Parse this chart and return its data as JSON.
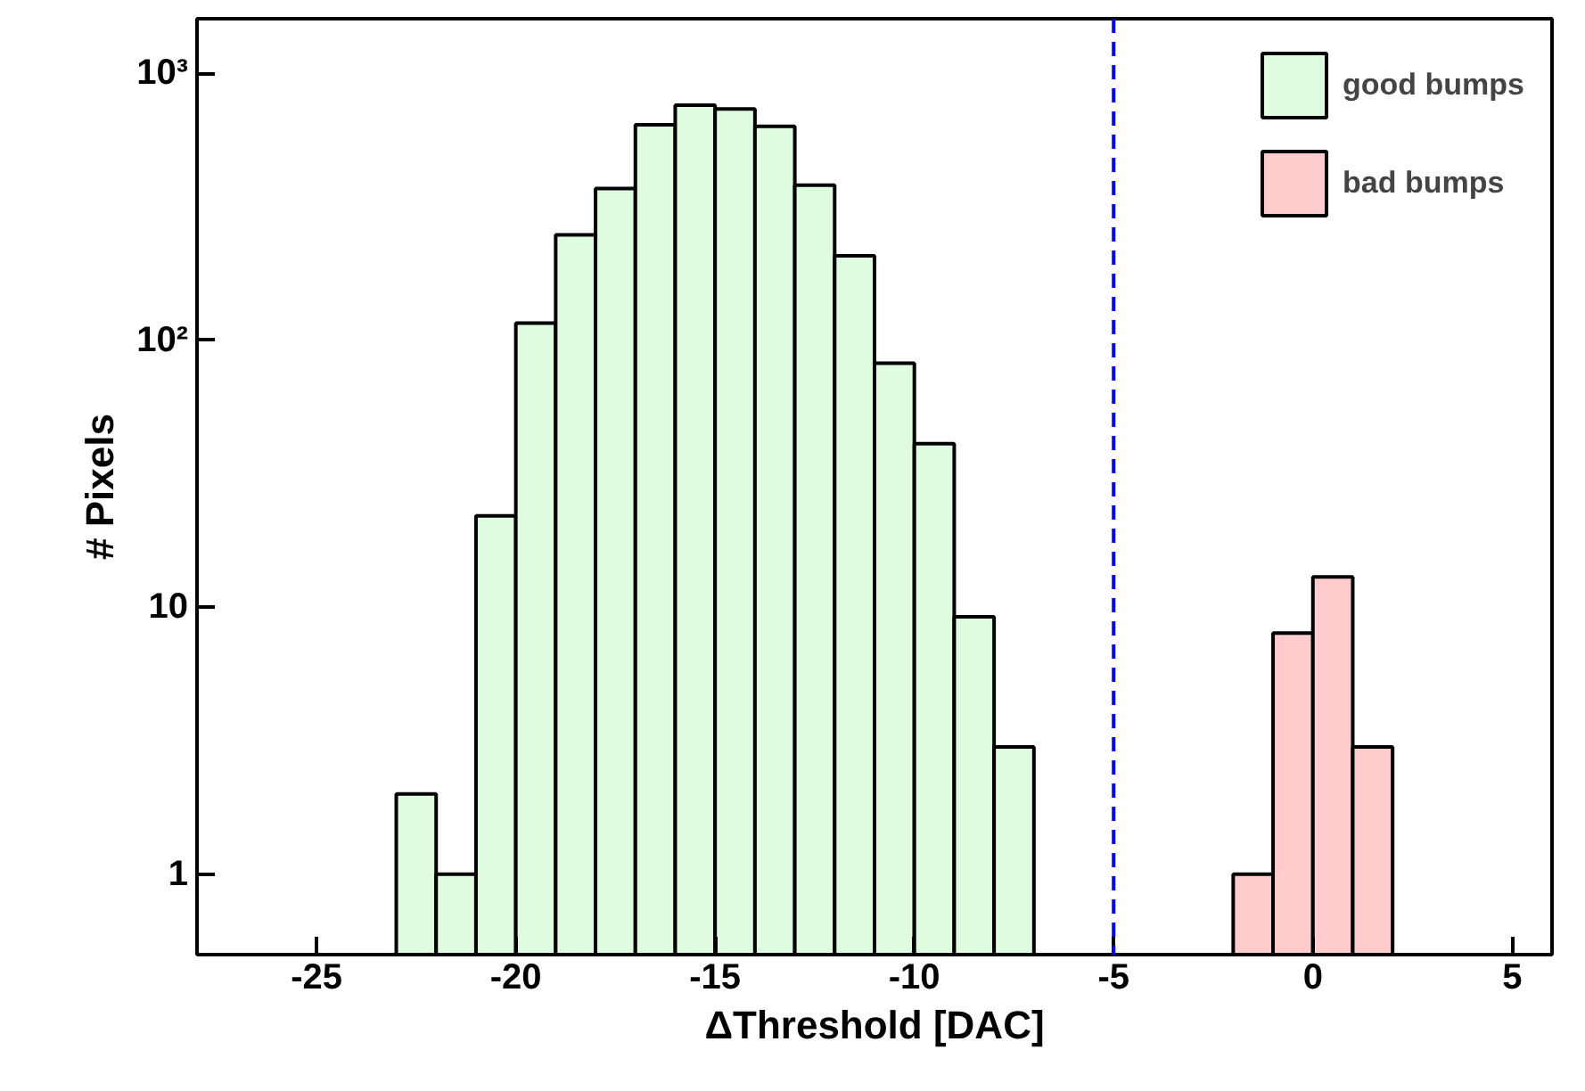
{
  "chart_data": {
    "type": "histogram",
    "xlabel": "ΔThreshold [DAC]",
    "ylabel": "# Pixels",
    "bins": [
      -23,
      -22,
      -21,
      -20,
      -19,
      -18,
      -17,
      -16,
      -15,
      -14,
      -13,
      -12,
      -11,
      -10,
      -9,
      -8,
      -7,
      -6,
      -5,
      -4,
      -3,
      -2,
      -1,
      0,
      1,
      2
    ],
    "series": [
      {
        "name": "good bumps",
        "color": "#e0fce0",
        "values": [
          2,
          1,
          22,
          116,
          248,
          370,
          641,
          759,
          735,
          632,
          381,
          207,
          82,
          41,
          9.2,
          3,
          null,
          null,
          null,
          null,
          null,
          null,
          null,
          null,
          null
        ]
      },
      {
        "name": "bad bumps",
        "color": "#fecccc",
        "values": [
          null,
          null,
          null,
          null,
          null,
          null,
          null,
          null,
          null,
          null,
          null,
          null,
          null,
          null,
          null,
          null,
          null,
          null,
          null,
          null,
          null,
          1,
          8,
          13,
          3
        ]
      }
    ],
    "log": "y",
    "xlim": [
      -28,
      6
    ],
    "xticks": [
      -25,
      -20,
      -15,
      -10,
      -5,
      0,
      5
    ],
    "ylim": [
      0.5,
      1600
    ],
    "yticks": [
      1,
      10,
      {
        "value": 100,
        "label": "10²"
      },
      {
        "value": 1000,
        "label": "10³"
      }
    ],
    "ref_lines": [
      {
        "axis": "x",
        "value": -5,
        "color": "#0000ff",
        "line_style": "dashed"
      }
    ],
    "legend": "top right",
    "grid": false
  }
}
